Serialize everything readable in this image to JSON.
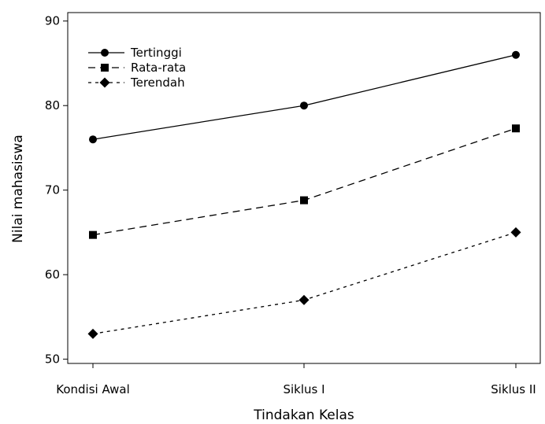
{
  "chart_data": {
    "type": "line",
    "title": "",
    "xlabel": "Tindakan Kelas",
    "ylabel": "Nilai mahasiswa",
    "categories": [
      "Kondisi Awal",
      "Siklus I",
      "Siklus II"
    ],
    "ylim": [
      49.5,
      91
    ],
    "yticks": [
      50,
      60,
      70,
      80,
      90
    ],
    "grid": false,
    "legend_position": "top-left",
    "series": [
      {
        "name": "Tertinggi",
        "values": [
          76,
          80,
          86
        ],
        "marker": "circle",
        "line": "solid"
      },
      {
        "name": "Rata-rata",
        "values": [
          64.7,
          68.8,
          77.3
        ],
        "marker": "square",
        "line": "dashed"
      },
      {
        "name": "Terendah",
        "values": [
          53,
          57,
          65
        ],
        "marker": "diamond",
        "line": "dashed"
      }
    ]
  }
}
